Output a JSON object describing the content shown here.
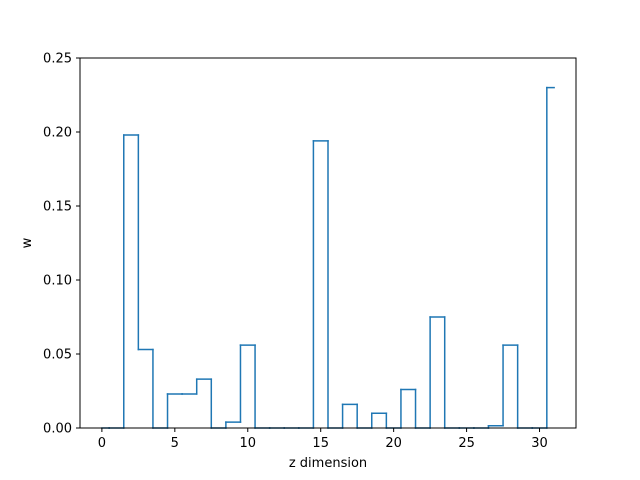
{
  "chart_data": {
    "type": "step",
    "title": "",
    "xlabel": "z dimension",
    "ylabel": "w",
    "xlim": [
      -1.5,
      32.5
    ],
    "ylim": [
      0,
      0.25
    ],
    "xticks": [
      0,
      5,
      10,
      15,
      20,
      25,
      30
    ],
    "yticks": [
      0.0,
      0.05,
      0.1,
      0.15,
      0.2,
      0.25
    ],
    "xtick_labels": [
      "0",
      "5",
      "10",
      "15",
      "20",
      "25",
      "30"
    ],
    "ytick_labels": [
      "0.00",
      "0.05",
      "0.10",
      "0.15",
      "0.20",
      "0.25"
    ],
    "grid": false,
    "line_color": "#1f77b4",
    "step_where": "mid",
    "x": [
      0,
      1,
      2,
      3,
      4,
      5,
      6,
      7,
      8,
      9,
      10,
      11,
      12,
      13,
      14,
      15,
      16,
      17,
      18,
      19,
      20,
      21,
      22,
      23,
      24,
      25,
      26,
      27,
      28,
      29,
      30,
      31
    ],
    "values": [
      0.0,
      0.0,
      0.198,
      0.053,
      0.0,
      0.023,
      0.023,
      0.033,
      0.0,
      0.004,
      0.056,
      0.0,
      0.0,
      0.0,
      0.0,
      0.194,
      0.0,
      0.016,
      0.0,
      0.01,
      0.0,
      0.026,
      0.0,
      0.075,
      0.0,
      0.0,
      0.0,
      0.0015,
      0.056,
      0.0,
      0.0,
      0.23
    ]
  }
}
